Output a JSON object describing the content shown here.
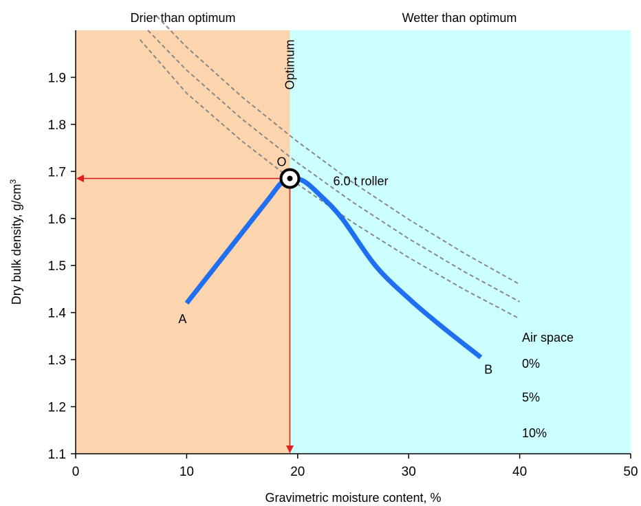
{
  "chart_data": {
    "type": "line",
    "xlabel": "Gravimetric moisture content, %",
    "ylabel_main": "Dry bulk density, g/cm",
    "ylabel_sup": "3",
    "xlim": [
      0,
      50
    ],
    "ylim": [
      1.1,
      2.0
    ],
    "x_ticks": [
      0,
      10,
      20,
      30,
      40,
      50
    ],
    "y_ticks": [
      1.1,
      1.2,
      1.3,
      1.4,
      1.5,
      1.6,
      1.7,
      1.8,
      1.9
    ],
    "regions": [
      {
        "label": "Drier than optimum",
        "x_range": [
          0,
          19.3
        ],
        "color": "#fcd5ae"
      },
      {
        "label": "Wetter than optimum",
        "x_range": [
          19.3,
          50
        ],
        "color": "#ccffff"
      }
    ],
    "optimum": {
      "label": "Optimum",
      "point_label": "O",
      "x": 19.3,
      "y": 1.685
    },
    "series": [
      {
        "name": "6.0 t roller",
        "color": "#1f6ff0",
        "x": [
          10,
          12,
          14,
          16,
          17.5,
          18.5,
          19.3,
          20.5,
          22,
          24,
          27,
          30,
          33,
          36.5
        ],
        "y": [
          1.42,
          1.48,
          1.54,
          1.6,
          1.645,
          1.675,
          1.685,
          1.68,
          1.65,
          1.6,
          1.5,
          1.43,
          1.37,
          1.305
        ]
      }
    ],
    "point_labels": [
      {
        "text": "A",
        "x": 10,
        "y": 1.42
      },
      {
        "text": "B",
        "x": 36.5,
        "y": 1.305
      }
    ],
    "air_space": {
      "title": "Air space",
      "color": "#888888",
      "curves": [
        {
          "label": "0%",
          "x": [
            7.3,
            10,
            15,
            20,
            25,
            30,
            35,
            40
          ],
          "y": [
            2.03,
            1.964,
            1.858,
            1.763,
            1.676,
            1.598,
            1.526,
            1.46
          ]
        },
        {
          "label": "5%",
          "x": [
            6.5,
            10,
            15,
            20,
            25,
            30,
            35,
            40
          ],
          "y": [
            2.0,
            1.915,
            1.811,
            1.718,
            1.634,
            1.557,
            1.487,
            1.423
          ]
        },
        {
          "label": "10%",
          "x": [
            5.8,
            10,
            15,
            20,
            25,
            30,
            35,
            40
          ],
          "y": [
            1.98,
            1.866,
            1.764,
            1.673,
            1.591,
            1.517,
            1.449,
            1.387
          ]
        }
      ]
    }
  }
}
